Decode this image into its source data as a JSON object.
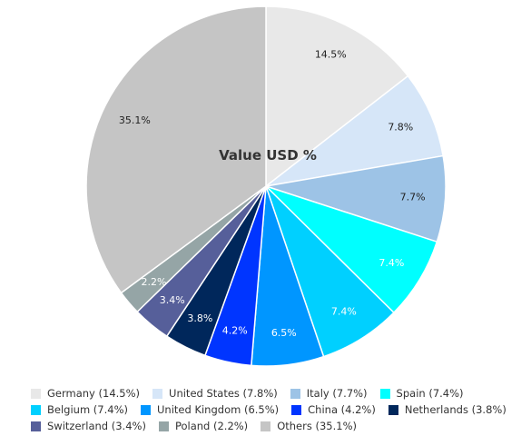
{
  "chart_data": {
    "type": "pie",
    "title": "Value USD %",
    "slices": [
      {
        "label": "Germany",
        "legend": "Germany (14.5%)",
        "value": 14.5,
        "display": "14.5%",
        "color": "#e8e8e8"
      },
      {
        "label": "United States",
        "legend": "United States (7.8%)",
        "value": 7.8,
        "display": "7.8%",
        "color": "#d6e6f8"
      },
      {
        "label": "Italy",
        "legend": "Italy (7.7%)",
        "value": 7.7,
        "display": "7.7%",
        "color": "#9dc3e6"
      },
      {
        "label": "Spain",
        "legend": "Spain (7.4%)",
        "value": 7.4,
        "display": "7.4%",
        "color": "#00ffff"
      },
      {
        "label": "Belgium",
        "legend": "Belgium (7.4%)",
        "value": 7.4,
        "display": "7.4%",
        "color": "#00d0ff"
      },
      {
        "label": "United Kingdom",
        "legend": "United Kingdom (6.5%)",
        "value": 6.5,
        "display": "6.5%",
        "color": "#0096ff"
      },
      {
        "label": "China",
        "legend": "China (4.2%)",
        "value": 4.2,
        "display": "4.2%",
        "color": "#0035ff"
      },
      {
        "label": "Netherlands",
        "legend": "Netherlands (3.8%)",
        "value": 3.8,
        "display": "3.8%",
        "color": "#00275b"
      },
      {
        "label": "Switzerland",
        "legend": "Switzerland (3.4%)",
        "value": 3.4,
        "display": "3.4%",
        "color": "#565f9a"
      },
      {
        "label": "Poland",
        "legend": "Poland (2.2%)",
        "value": 2.2,
        "display": "2.2%",
        "color": "#95a5a6"
      },
      {
        "label": "Others",
        "legend": "Others (35.1%)",
        "value": 35.1,
        "display": "35.1%",
        "color": "#c5c5c5"
      }
    ],
    "label_colors": {
      "dark": "#222222",
      "light": "#ffffff"
    },
    "legend_placement": "bottom"
  }
}
